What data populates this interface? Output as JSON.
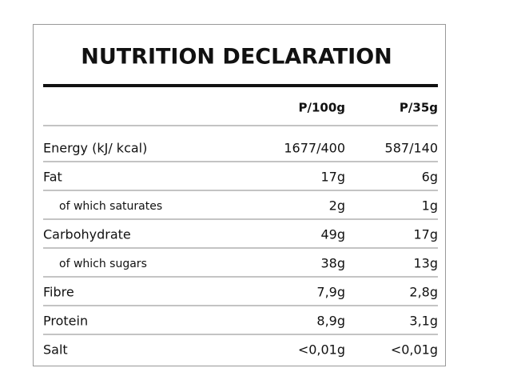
{
  "title": "NUTRITION DECLARATION",
  "table": {
    "header": [
      "P/100g",
      "P/35g"
    ],
    "rows": [
      [
        "Energy (kJ/ kcal)",
        "1677/400",
        "587/140"
      ],
      [
        "Fat",
        "17g",
        "6g"
      ],
      [
        "of which saturates",
        "2g",
        "1g"
      ],
      [
        "Carbohydrate",
        "49g",
        "17g"
      ],
      [
        "of which sugars",
        "38g",
        "13g"
      ],
      [
        "Fibre",
        "7,9g",
        "2,8g"
      ],
      [
        "Protein",
        "8,9g",
        "3,1g"
      ],
      [
        "Salt",
        "<0,01g",
        "<0,01g"
      ]
    ]
  }
}
